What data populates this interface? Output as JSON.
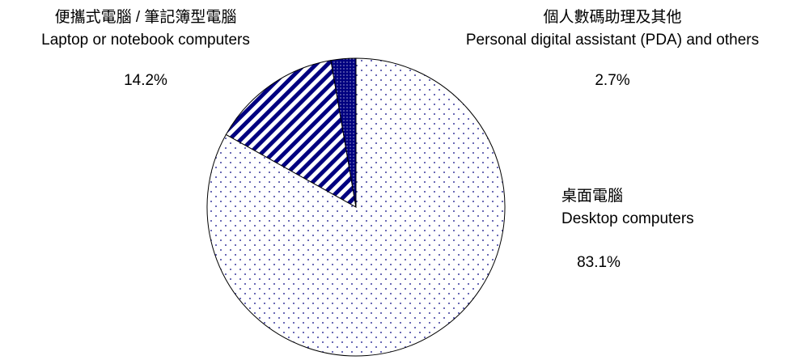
{
  "chart_data": {
    "type": "pie",
    "categories": [
      "桌面電腦",
      "便攜式電腦 / 筆記簿型電腦",
      "個人數碼助理及其他"
    ],
    "categories_en": [
      "Desktop computers",
      "Laptop or notebook computers",
      "Personal digital assistant (PDA) and others"
    ],
    "values": [
      83.1,
      14.2,
      2.7
    ],
    "value_labels": [
      "83.1%",
      "14.2%",
      "2.7%"
    ],
    "colors": [
      "#000080",
      "#000080",
      "#000080"
    ]
  }
}
